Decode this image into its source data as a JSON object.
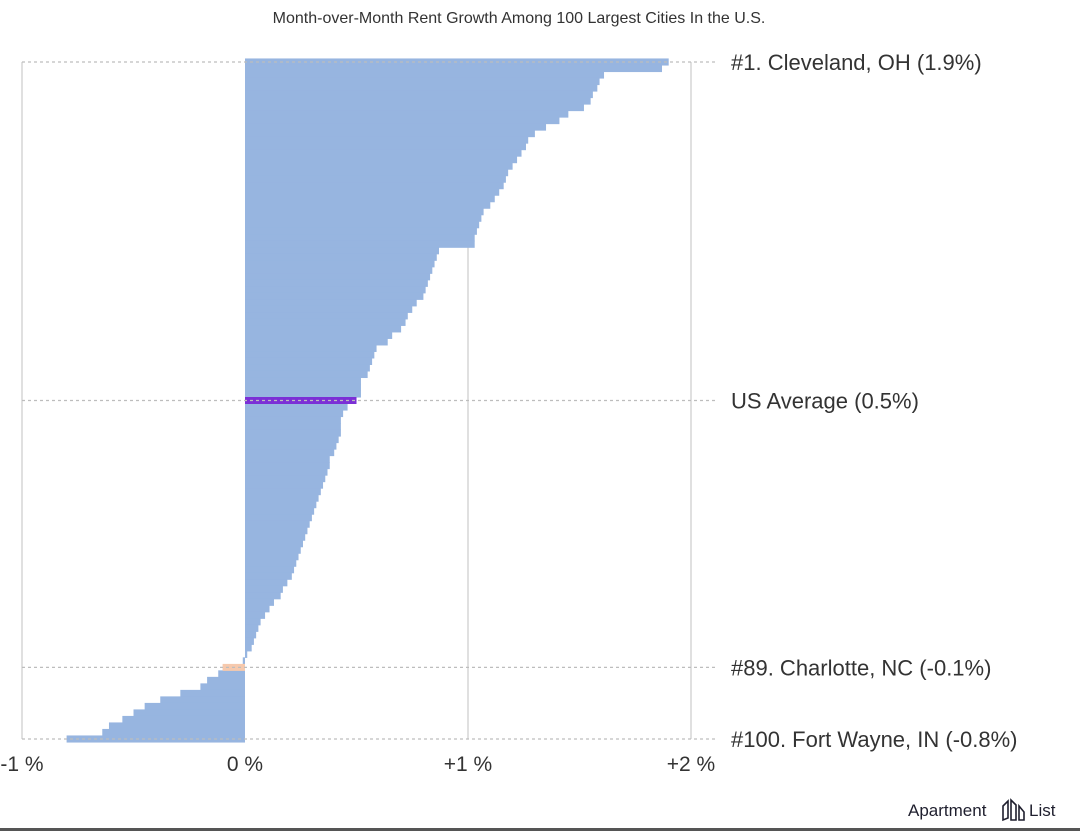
{
  "chart_data": {
    "type": "bar",
    "orientation": "horizontal",
    "title": "Month-over-Month Rent Growth Among 100 Largest Cities In the U.S.",
    "xlabel": "",
    "ylabel": "",
    "xlim": [
      -1,
      2
    ],
    "grid": "vertical",
    "x_ticks": [
      {
        "value": -1,
        "label": "-1 %"
      },
      {
        "value": 0,
        "label": "0 %"
      },
      {
        "value": 1,
        "label": "+1 %"
      },
      {
        "value": 2,
        "label": "+2 %"
      }
    ],
    "series": [
      {
        "values": [
          1.9,
          1.87,
          1.61,
          1.59,
          1.58,
          1.56,
          1.55,
          1.52,
          1.45,
          1.41,
          1.35,
          1.3,
          1.27,
          1.26,
          1.24,
          1.22,
          1.2,
          1.18,
          1.17,
          1.16,
          1.14,
          1.12,
          1.1,
          1.07,
          1.06,
          1.05,
          1.04,
          1.03,
          1.03,
          0.87,
          0.86,
          0.85,
          0.84,
          0.83,
          0.82,
          0.81,
          0.8,
          0.77,
          0.75,
          0.73,
          0.72,
          0.7,
          0.66,
          0.64,
          0.59,
          0.58,
          0.57,
          0.56,
          0.55,
          0.52,
          0.52,
          0.52,
          0.5,
          0.46,
          0.44,
          0.43,
          0.43,
          0.43,
          0.42,
          0.41,
          0.4,
          0.38,
          0.38,
          0.37,
          0.36,
          0.35,
          0.34,
          0.33,
          0.32,
          0.31,
          0.3,
          0.29,
          0.28,
          0.27,
          0.26,
          0.25,
          0.24,
          0.23,
          0.22,
          0.21,
          0.19,
          0.17,
          0.16,
          0.13,
          0.11,
          0.09,
          0.07,
          0.06,
          0.05,
          0.04,
          0.03,
          0.01,
          -0.01,
          -0.1,
          -0.12,
          -0.17,
          -0.2,
          -0.29,
          -0.38,
          -0.45,
          -0.5,
          -0.55,
          -0.61,
          -0.64,
          -0.8
        ]
      }
    ],
    "highlights": [
      {
        "index": 52,
        "color": "#7b2fd6"
      },
      {
        "index": 93,
        "color": "#f6c9ad"
      }
    ],
    "annotations": [
      {
        "label": "#1. Cleveland, OH (1.9%)",
        "index": 0
      },
      {
        "label": "US Average (0.5%)",
        "index": 52
      },
      {
        "label": "#89. Charlotte, NC (-0.1%)",
        "index": 93
      },
      {
        "label": "#100. Fort Wayne, IN (-0.8%)",
        "index": 104
      }
    ],
    "colors": {
      "bar": "#97b5e0",
      "average": "#7b2fd6",
      "highlight": "#f6c9ad",
      "gridline": "#cccccc",
      "dotted_line": "#bdbdbd"
    }
  },
  "branding": {
    "logo_text": "Apartment",
    "logo_text_2": "List",
    "logo_icon": "apartment-list-building-icon"
  }
}
